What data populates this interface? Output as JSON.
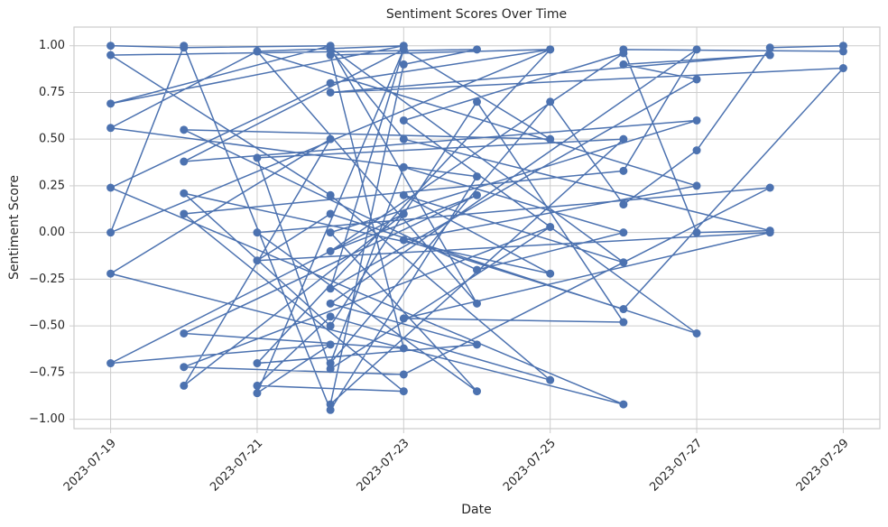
{
  "chart_data": {
    "type": "line",
    "title": "Sentiment Scores Over Time",
    "x_label": "Date",
    "y_label": "Sentiment Score",
    "xlim": [
      "2023-07-18T12:00",
      "2023-07-29T12:00"
    ],
    "xticks": [
      "2023-07-19",
      "2023-07-21",
      "2023-07-23",
      "2023-07-25",
      "2023-07-27",
      "2023-07-29"
    ],
    "ylim": [
      -1.05,
      1.1
    ],
    "yticks": [
      {
        "value": -1,
        "label": "−1.00"
      },
      {
        "value": -0.75,
        "label": "−0.75"
      },
      {
        "value": -0.5,
        "label": "−0.50"
      },
      {
        "value": -0.25,
        "label": "−0.25"
      },
      {
        "value": 0,
        "label": "0.00"
      },
      {
        "value": 0.25,
        "label": "0.25"
      },
      {
        "value": 0.5,
        "label": "0.50"
      },
      {
        "value": 0.75,
        "label": "0.75"
      },
      {
        "value": 1,
        "label": "1.00"
      }
    ],
    "grid": true,
    "series": [
      {
        "color": "#4c72b0",
        "x": [
          "2023-07-19",
          "2023-07-20",
          "2023-07-22",
          "2023-07-19",
          "2023-07-23",
          "2023-07-21",
          "2023-07-19",
          "2023-07-24",
          "2023-07-22",
          "2023-07-20",
          "2023-07-19",
          "2023-07-25",
          "2023-07-22",
          "2023-07-19",
          "2023-07-26",
          "2023-07-19",
          "2023-07-22",
          "2023-07-20",
          "2023-07-23",
          "2023-07-19",
          "2023-07-22",
          "2023-07-21",
          "2023-07-23",
          "2023-07-20",
          "2023-07-27",
          "2023-07-22",
          "2023-07-24",
          "2023-07-21",
          "2023-07-28",
          "2023-07-23",
          "2023-07-20",
          "2023-07-25",
          "2023-07-22",
          "2023-07-21",
          "2023-07-26",
          "2023-07-22",
          "2023-07-23",
          "2023-07-24",
          "2023-07-19",
          "2023-07-22",
          "2023-07-25",
          "2023-07-22",
          "2023-07-21",
          "2023-07-23",
          "2023-07-20",
          "2023-07-26",
          "2023-07-27",
          "2023-07-22",
          "2023-07-24",
          "2023-07-21",
          "2023-07-25",
          "2023-07-22",
          "2023-07-23",
          "2023-07-20",
          "2023-07-24",
          "2023-07-22",
          "2023-07-26",
          "2023-07-23",
          "2023-07-27",
          "2023-07-22",
          "2023-07-21",
          "2023-07-28",
          "2023-07-23",
          "2023-07-26",
          "2023-07-24",
          "2023-07-22",
          "2023-07-20",
          "2023-07-25",
          "2023-07-23",
          "2023-07-26",
          "2023-07-22",
          "2023-07-24",
          "2023-07-21",
          "2023-07-27",
          "2023-07-23",
          "2023-07-26",
          "2023-07-29",
          "2023-07-22",
          "2023-07-28",
          "2023-07-26",
          "2023-07-27",
          "2023-07-22",
          "2023-07-23",
          "2023-07-25",
          "2023-07-20",
          "2023-07-24",
          "2023-07-26",
          "2023-07-23",
          "2023-07-22",
          "2023-07-25",
          "2023-07-26",
          "2023-07-27",
          "2023-07-28",
          "2023-07-29",
          "2023-07-29",
          "2023-07-26",
          "2023-07-27",
          "2023-07-28",
          "2023-07-23",
          "2023-07-22"
        ],
        "values": [
          1,
          0.99,
          1,
          0.69,
          1,
          0.97,
          0.56,
          0.3,
          -0.95,
          1,
          0,
          0.98,
          0.8,
          0.24,
          -0.92,
          -0.22,
          0.5,
          -0.82,
          0.1,
          -0.7,
          -0.6,
          -0.86,
          0.98,
          0.38,
          0.6,
          0,
          -0.85,
          0,
          0.24,
          -0.76,
          -0.72,
          0.03,
          -0.73,
          0.4,
          0.5,
          -0.92,
          0.9,
          0.98,
          0.95,
          0.2,
          -0.79,
          -0.45,
          -0.82,
          -0.85,
          0.1,
          0.33,
          0.98,
          -0.38,
          -0.6,
          -0.7,
          0.98,
          0.95,
          -0.62,
          -0.54,
          0.2,
          -0.1,
          0.96,
          0.6,
          -0.54,
          0.1,
          -0.15,
          0,
          -0.46,
          -0.48,
          0.7,
          -0.5,
          0.21,
          -0.22,
          0.2,
          -0.16,
          0.99,
          -0.38,
          0.97,
          0.25,
          -0.04,
          -0.41,
          0.88,
          0.75,
          0.95,
          0.9,
          0.82,
          -0.3,
          0.98,
          0.5,
          0.55,
          -0.2,
          0,
          0.35,
          -0.7,
          0.7,
          0.15,
          0.44,
          0.99,
          1,
          0.97,
          0.98,
          0,
          0.01,
          0.5,
          0.98
        ]
      }
    ]
  }
}
